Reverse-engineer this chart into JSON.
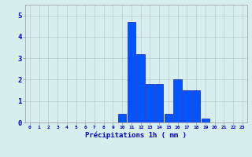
{
  "hours": [
    0,
    1,
    2,
    3,
    4,
    5,
    6,
    7,
    8,
    9,
    10,
    11,
    12,
    13,
    14,
    15,
    16,
    17,
    18,
    19,
    20,
    21,
    22,
    23
  ],
  "values": [
    0,
    0,
    0,
    0,
    0,
    0,
    0,
    0,
    0,
    0,
    0.4,
    4.7,
    3.2,
    1.8,
    1.8,
    0.4,
    2.0,
    1.5,
    1.5,
    0.2,
    0,
    0,
    0,
    0
  ],
  "bar_color": "#0055ff",
  "bar_edge_color": "#0000aa",
  "background_color": "#d6eeee",
  "grid_color": "#b8cccc",
  "text_color": "#0000cc",
  "xlabel": "Précipitations 1h ( mm )",
  "ylim": [
    0,
    5.5
  ],
  "xlim": [
    -0.5,
    23.5
  ],
  "yticks": [
    0,
    1,
    2,
    3,
    4,
    5
  ],
  "xticks": [
    0,
    1,
    2,
    3,
    4,
    5,
    6,
    7,
    8,
    9,
    10,
    11,
    12,
    13,
    14,
    15,
    16,
    17,
    18,
    19,
    20,
    21,
    22,
    23
  ]
}
